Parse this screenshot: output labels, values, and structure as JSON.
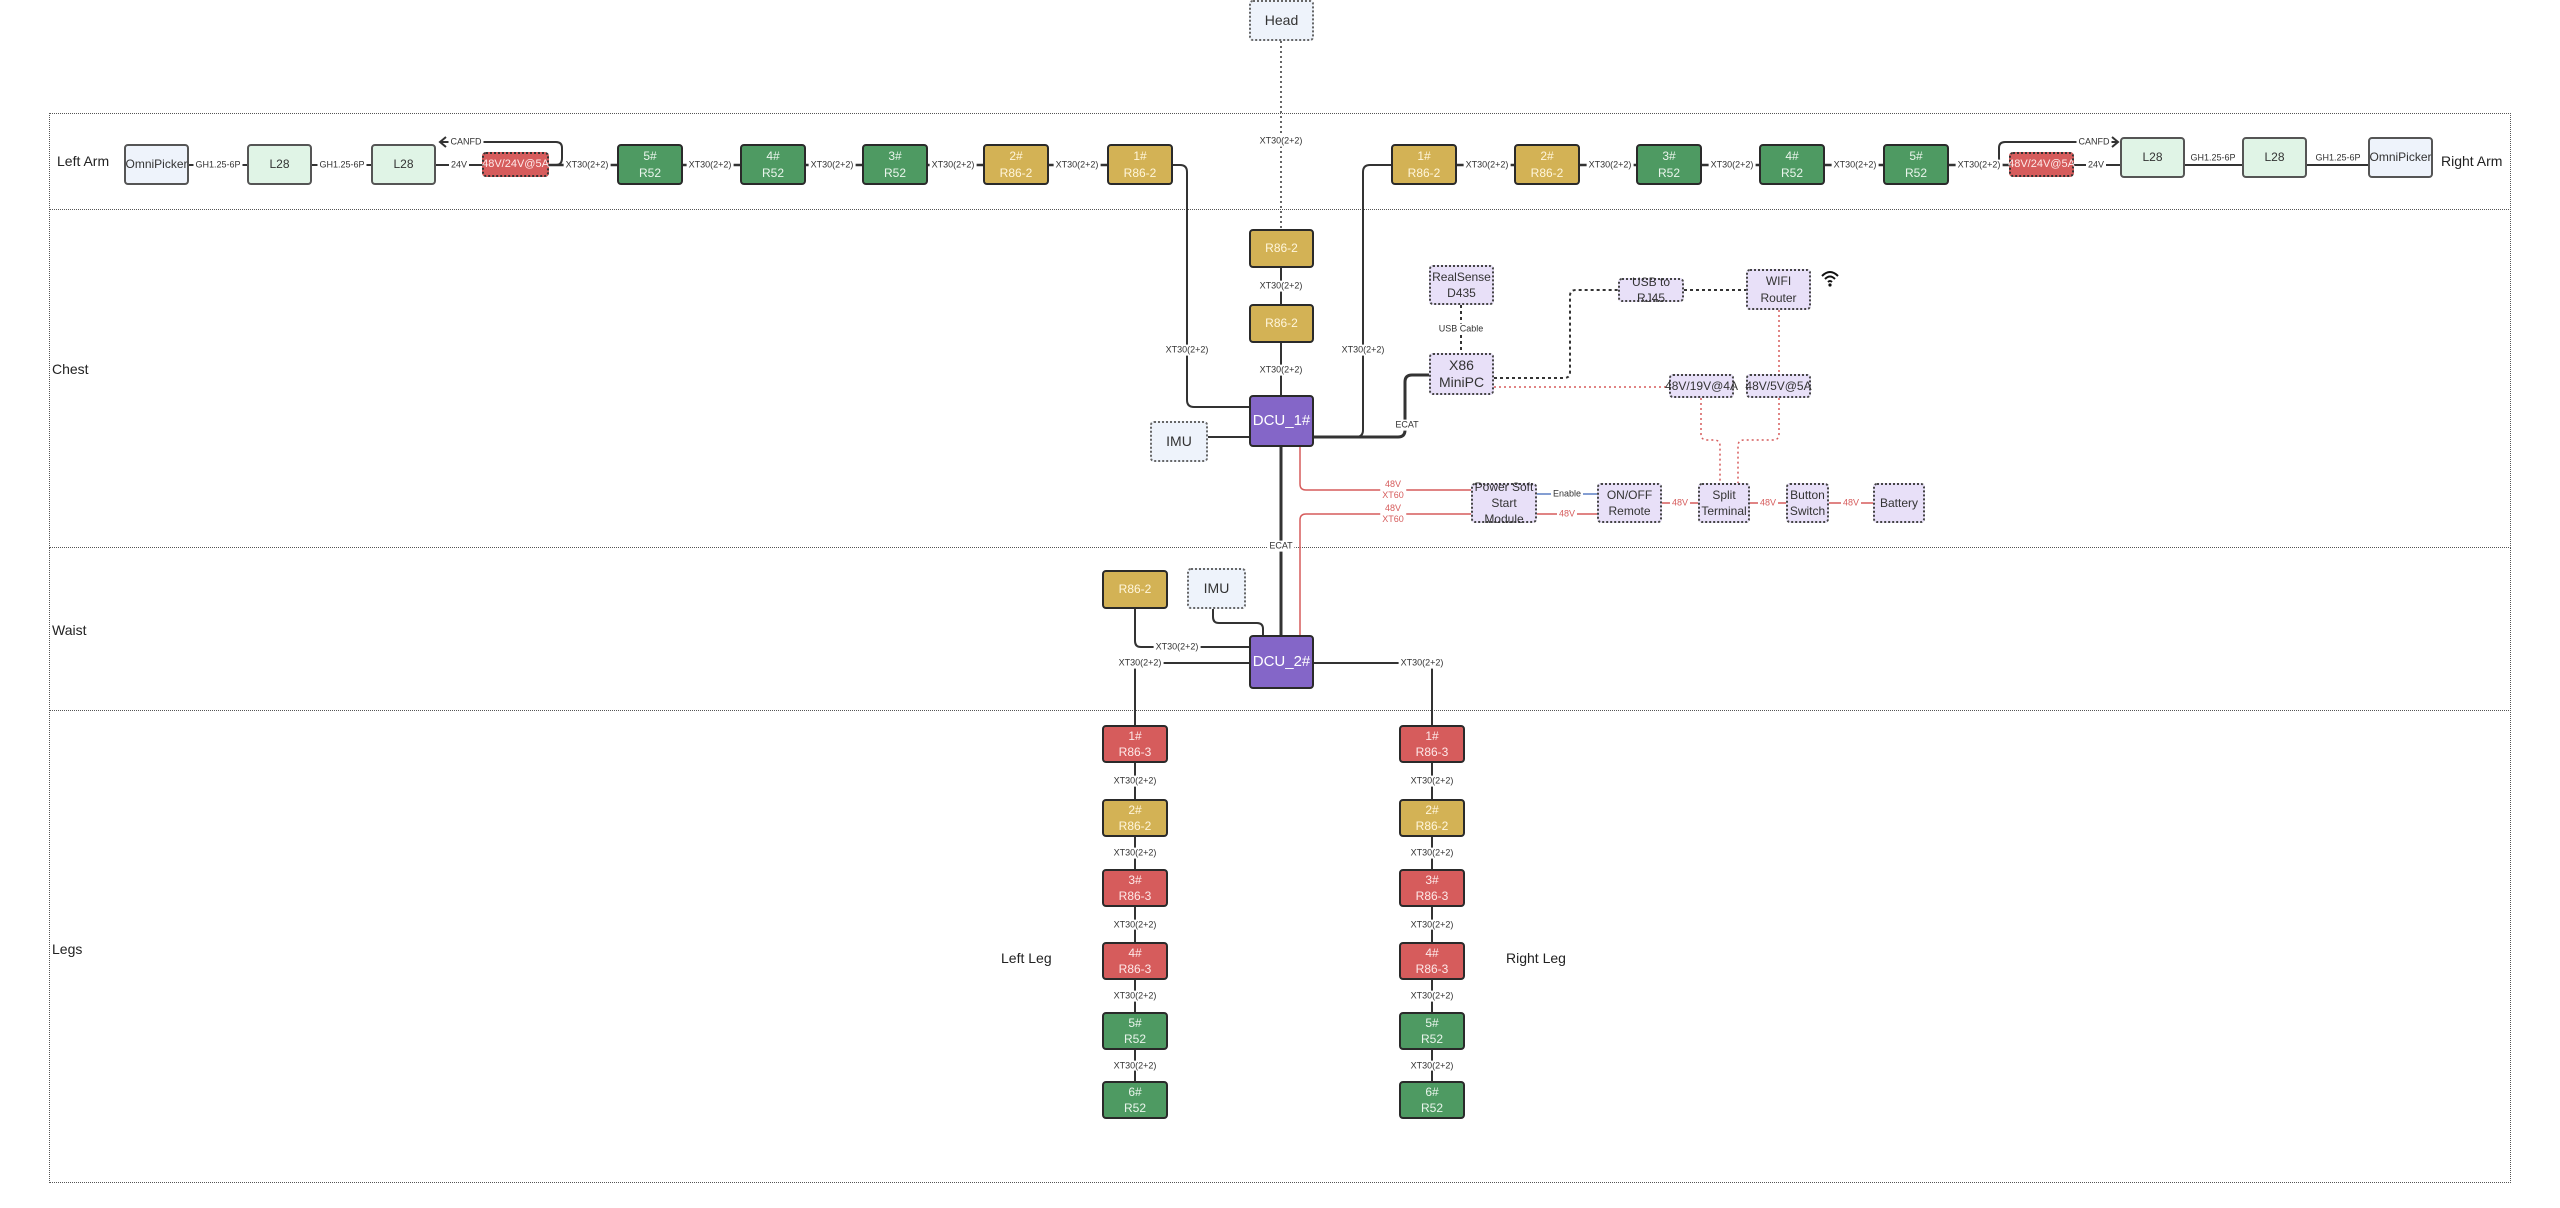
{
  "sections": {
    "left_arm": "Left Arm",
    "right_arm": "Right Arm",
    "chest": "Chest",
    "waist": "Waist",
    "legs": "Legs",
    "left_leg": "Left Leg",
    "right_leg": "Right Leg"
  },
  "head": "Head",
  "colors": {
    "r52": "#4e9a62",
    "r86_2": "#d3b255",
    "r86_3": "#d65c5c",
    "dcu": "#8466c8",
    "peripheral": "#e8e0f8",
    "l28": "#e0f4e6"
  },
  "arm": {
    "omnipicker": "OmniPicker",
    "l28": "L28",
    "converter": "48V/24V@5A",
    "gh": "GH1.25-6P",
    "v24": "24V",
    "canfd": "CANFD",
    "xt30": "XT30(2+2)",
    "joints": [
      {
        "num": "5#",
        "model": "R52"
      },
      {
        "num": "4#",
        "model": "R52"
      },
      {
        "num": "3#",
        "model": "R52"
      },
      {
        "num": "2#",
        "model": "R86-2"
      },
      {
        "num": "1#",
        "model": "R86-2"
      }
    ]
  },
  "chest": {
    "r86": "R86-2",
    "xt30": "XT30(2+2)",
    "dcu": "DCU_1#",
    "imu": "IMU",
    "ecat": "ECAT",
    "realsense": [
      "RealSense",
      "D435"
    ],
    "usb_cable": "USB Cable",
    "minipc": [
      "X86",
      "MiniPC"
    ],
    "usb_rj45": "USB to RJ45",
    "wifi": "WIFI Router",
    "wifi_icon": "wifi-icon",
    "dc19": "48V/19V@4A",
    "dc5": "48V/5V@5A",
    "v48": "48V",
    "xt60": "XT60",
    "enable": "Enable",
    "softstart": [
      "Power Soft",
      "Start Module"
    ],
    "onoff": [
      "ON/OFF",
      "Remote"
    ],
    "split": [
      "Split",
      "Terminal"
    ],
    "button": [
      "Button",
      "Switch"
    ],
    "battery": "Battery"
  },
  "waist": {
    "r86": "R86-2",
    "imu": "IMU",
    "dcu": "DCU_2#",
    "xt30": "XT30(2+2)"
  },
  "legs": {
    "xt30": "XT30(2+2)",
    "joints": [
      {
        "num": "1#",
        "model": "R86-3"
      },
      {
        "num": "2#",
        "model": "R86-2"
      },
      {
        "num": "3#",
        "model": "R86-3"
      },
      {
        "num": "4#",
        "model": "R86-3"
      },
      {
        "num": "5#",
        "model": "R52"
      },
      {
        "num": "6#",
        "model": "R52"
      }
    ]
  }
}
